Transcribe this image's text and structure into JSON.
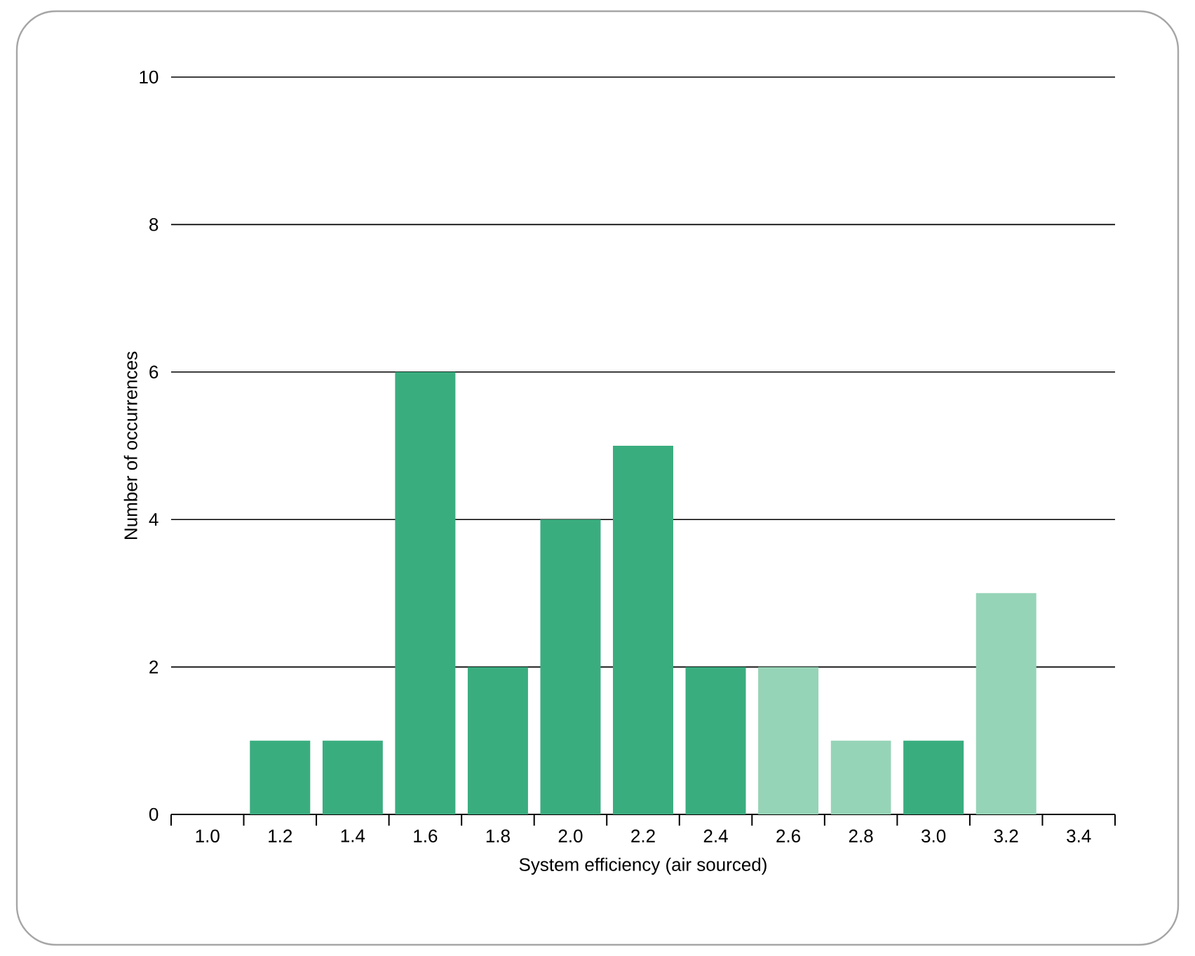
{
  "chart_data": {
    "type": "bar",
    "xlabel": "System efficiency (air sourced)",
    "ylabel": "Number of occurrences",
    "categories": [
      "1.0",
      "1.2",
      "1.4",
      "1.6",
      "1.8",
      "2.0",
      "2.2",
      "2.4",
      "2.6",
      "2.8",
      "3.0",
      "3.2",
      "3.4"
    ],
    "values": [
      0,
      1,
      1,
      6,
      2,
      4,
      5,
      2,
      2,
      1,
      1,
      3,
      0
    ],
    "colors": [
      "#3aad7f",
      "#3aad7f",
      "#3aad7f",
      "#3aad7f",
      "#3aad7f",
      "#3aad7f",
      "#3aad7f",
      "#3aad7f",
      "#96d4b7",
      "#96d4b7",
      "#3aad7f",
      "#96d4b7",
      "#3aad7f"
    ],
    "ylim": [
      0,
      10
    ],
    "yticks": [
      0,
      2,
      4,
      6,
      8,
      10
    ],
    "grid": "y"
  }
}
